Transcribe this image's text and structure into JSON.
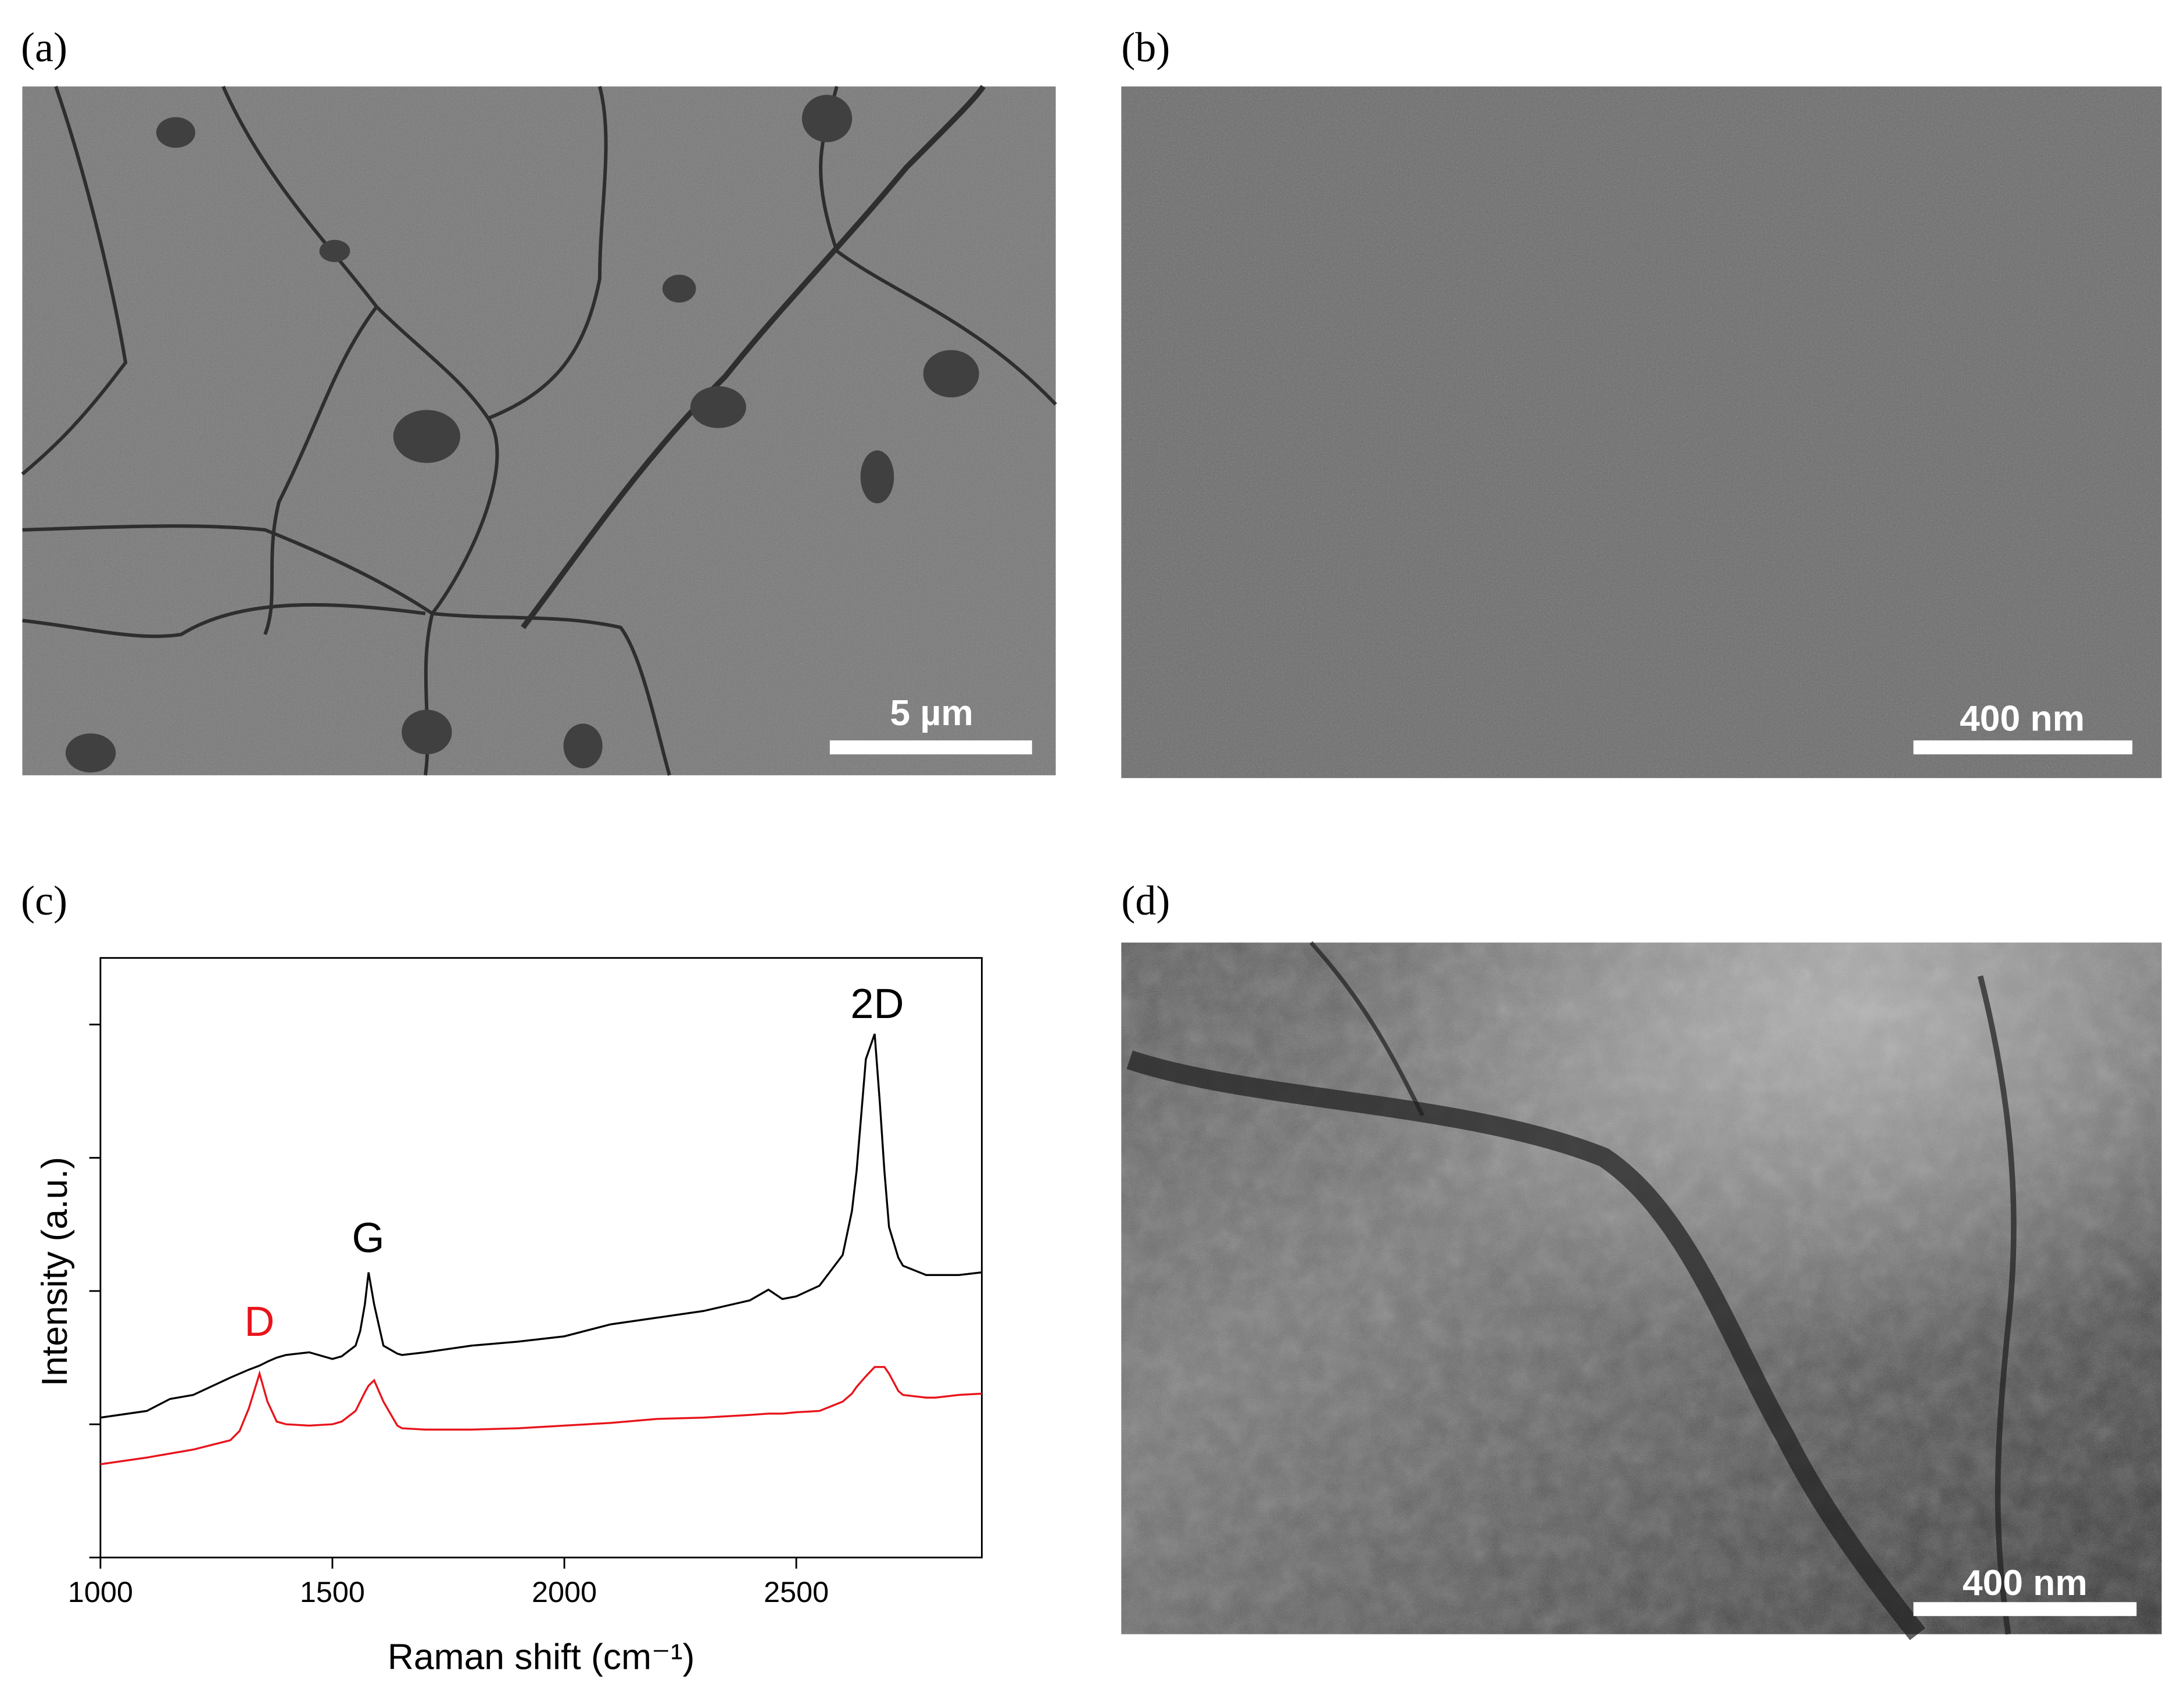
{
  "panels": {
    "a": {
      "label": "(a)",
      "scale_bar": "5 µm"
    },
    "b": {
      "label": "(b)",
      "scale_bar": "400 nm"
    },
    "c": {
      "label": "(c)"
    },
    "d": {
      "label": "(d)",
      "scale_bar": "400 nm"
    }
  },
  "chart_data": {
    "type": "line",
    "x_label": "Raman shift (cm⁻¹)",
    "y_label": "Intensity (a.u.)",
    "x": [
      1000,
      1100,
      1150,
      1200,
      1280,
      1300,
      1320,
      1343,
      1360,
      1380,
      1400,
      1450,
      1500,
      1520,
      1550,
      1560,
      1570,
      1578,
      1590,
      1610,
      1640,
      1650,
      1700,
      1800,
      1900,
      2000,
      2100,
      2200,
      2300,
      2400,
      2440,
      2470,
      2500,
      2550,
      2600,
      2620,
      2630,
      2650,
      2669,
      2680,
      2690,
      2700,
      2720,
      2730,
      2780,
      2800,
      2850,
      2900
    ],
    "series": [
      {
        "color": "#000000",
        "values": [
          1.05,
          1.1,
          1.19,
          1.22,
          1.35,
          1.38,
          1.41,
          1.44,
          1.47,
          1.5,
          1.52,
          1.54,
          1.49,
          1.51,
          1.59,
          1.7,
          1.9,
          2.14,
          1.9,
          1.59,
          1.53,
          1.52,
          1.54,
          1.59,
          1.62,
          1.66,
          1.75,
          1.8,
          1.85,
          1.93,
          2.01,
          1.94,
          1.96,
          2.04,
          2.27,
          2.6,
          2.9,
          3.74,
          3.93,
          3.42,
          2.9,
          2.48,
          2.25,
          2.19,
          2.12,
          2.12,
          2.12,
          2.14
        ]
      },
      {
        "color": "#e8141b",
        "values": [
          0.7,
          0.75,
          0.78,
          0.81,
          0.88,
          0.95,
          1.12,
          1.38,
          1.17,
          1.02,
          1.0,
          0.99,
          1.0,
          1.02,
          1.1,
          1.17,
          1.24,
          1.29,
          1.33,
          1.17,
          0.99,
          0.97,
          0.96,
          0.96,
          0.97,
          0.99,
          1.01,
          1.04,
          1.05,
          1.07,
          1.08,
          1.08,
          1.09,
          1.1,
          1.17,
          1.23,
          1.28,
          1.36,
          1.43,
          1.43,
          1.43,
          1.38,
          1.25,
          1.22,
          1.2,
          1.2,
          1.22,
          1.23
        ]
      }
    ],
    "annotations": [
      {
        "text": "D",
        "color": "#e8141b"
      },
      {
        "text": "G",
        "color": "#000000"
      },
      {
        "text": "2D",
        "color": "#000000"
      }
    ],
    "xlim": [
      1000,
      2900
    ],
    "xticks": [
      1000,
      1500,
      2000,
      2500
    ],
    "ylim": [
      0,
      4.5
    ],
    "yticks": [
      0,
      1,
      2,
      3,
      4
    ]
  }
}
